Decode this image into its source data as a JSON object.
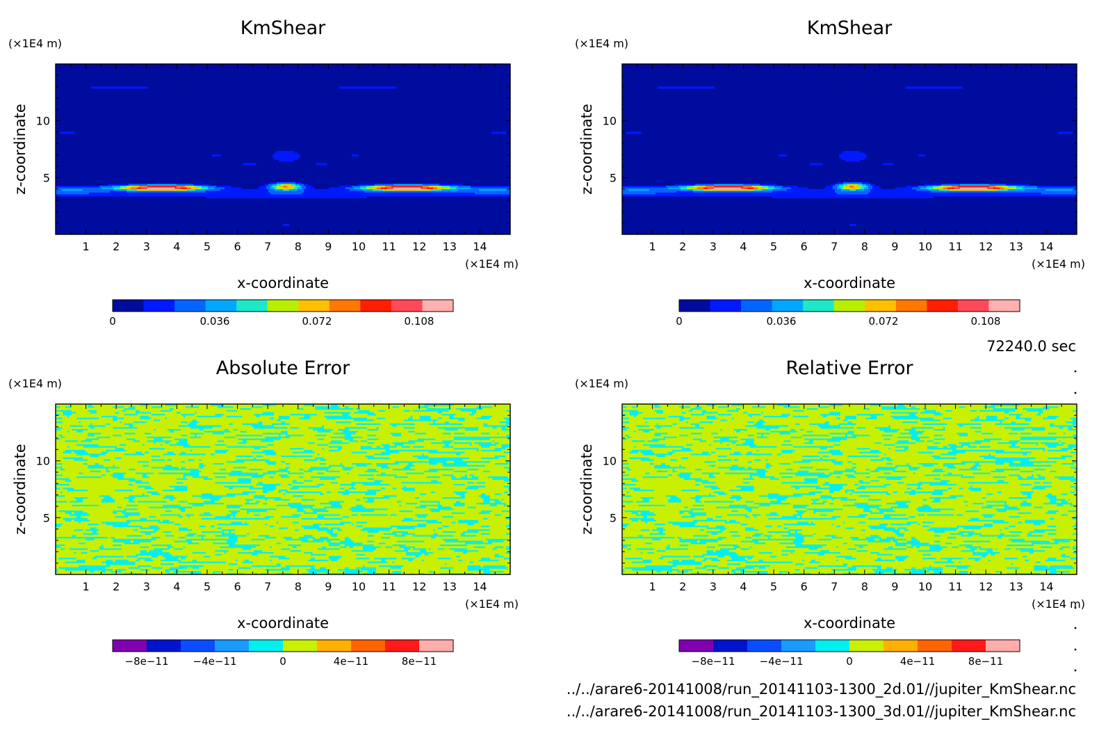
{
  "time_label": "72240.0 sec",
  "files": [
    "../../arare6-20141008/run_20141103-1300_2d.01//jupiter_KmShear.nc",
    "../../arare6-20141008/run_20141103-1300_3d.01//jupiter_KmShear.nc"
  ],
  "palettes": {
    "km": [
      "#000c9e",
      "#0019ff",
      "#0066ff",
      "#00a8ff",
      "#1fe8c8",
      "#b8ef00",
      "#ffc000",
      "#ff7800",
      "#ff1f00",
      "#ff4a5a",
      "#ffb0b0"
    ],
    "err": [
      "#8000b0",
      "#0014ce",
      "#0a4cff",
      "#1a9cff",
      "#00f0f0",
      "#c8f000",
      "#ffb000",
      "#ff6400",
      "#ff1a1a",
      "#ffacac"
    ]
  },
  "chart_data": [
    {
      "type": "heatmap",
      "title": "KmShear",
      "xlabel": "x-coordinate",
      "ylabel": "z-coordinate",
      "x_unit": "(×1E4 m)",
      "y_unit": "(×1E4 m)",
      "xlim": [
        0,
        15
      ],
      "ylim": [
        0,
        15
      ],
      "x_ticks": [
        1,
        2,
        3,
        4,
        5,
        6,
        7,
        8,
        9,
        10,
        11,
        12,
        13,
        14
      ],
      "y_ticks": [
        5,
        10
      ],
      "field": "km",
      "colorbar": {
        "min": 0,
        "max": 0.12,
        "levels": 11,
        "tick_values": [
          0,
          0.036,
          0.072,
          0.108
        ],
        "tick_labels": [
          "0",
          "0.036",
          "0.072",
          "0.108"
        ]
      }
    },
    {
      "type": "heatmap",
      "title": "KmShear",
      "xlabel": "x-coordinate",
      "ylabel": "z-coordinate",
      "x_unit": "(×1E4 m)",
      "y_unit": "(×1E4 m)",
      "xlim": [
        0,
        15
      ],
      "ylim": [
        0,
        15
      ],
      "x_ticks": [
        1,
        2,
        3,
        4,
        5,
        6,
        7,
        8,
        9,
        10,
        11,
        12,
        13,
        14
      ],
      "y_ticks": [
        5,
        10
      ],
      "field": "km",
      "colorbar": {
        "min": 0,
        "max": 0.12,
        "levels": 11,
        "tick_values": [
          0,
          0.036,
          0.072,
          0.108
        ],
        "tick_labels": [
          "0",
          "0.036",
          "0.072",
          "0.108"
        ]
      }
    },
    {
      "type": "heatmap",
      "title": "Absolute Error",
      "xlabel": "x-coordinate",
      "ylabel": "z-coordinate",
      "x_unit": "(×1E4 m)",
      "y_unit": "(×1E4 m)",
      "xlim": [
        0,
        15
      ],
      "ylim": [
        0,
        15
      ],
      "x_ticks": [
        1,
        2,
        3,
        4,
        5,
        6,
        7,
        8,
        9,
        10,
        11,
        12,
        13,
        14
      ],
      "y_ticks": [
        5,
        10
      ],
      "field": "err",
      "colorbar": {
        "min": -1e-10,
        "max": 1e-10,
        "levels": 10,
        "tick_values": [
          -8e-11,
          -4e-11,
          0,
          4e-11,
          8e-11
        ],
        "tick_labels": [
          "−8e−11",
          "−4e−11",
          "0",
          "4e−11",
          "8e−11"
        ]
      }
    },
    {
      "type": "heatmap",
      "title": "Relative Error",
      "xlabel": "x-coordinate",
      "ylabel": "z-coordinate",
      "x_unit": "(×1E4 m)",
      "y_unit": "(×1E4 m)",
      "xlim": [
        0,
        15
      ],
      "ylim": [
        0,
        15
      ],
      "x_ticks": [
        1,
        2,
        3,
        4,
        5,
        6,
        7,
        8,
        9,
        10,
        11,
        12,
        13,
        14
      ],
      "y_ticks": [
        5,
        10
      ],
      "field": "err",
      "colorbar": {
        "min": -1e-10,
        "max": 1e-10,
        "levels": 10,
        "tick_values": [
          -8e-11,
          -4e-11,
          0,
          4e-11,
          8e-11
        ],
        "tick_labels": [
          "−8e−11",
          "−4e−11",
          "0",
          "4e−11",
          "8e−11"
        ]
      }
    }
  ]
}
